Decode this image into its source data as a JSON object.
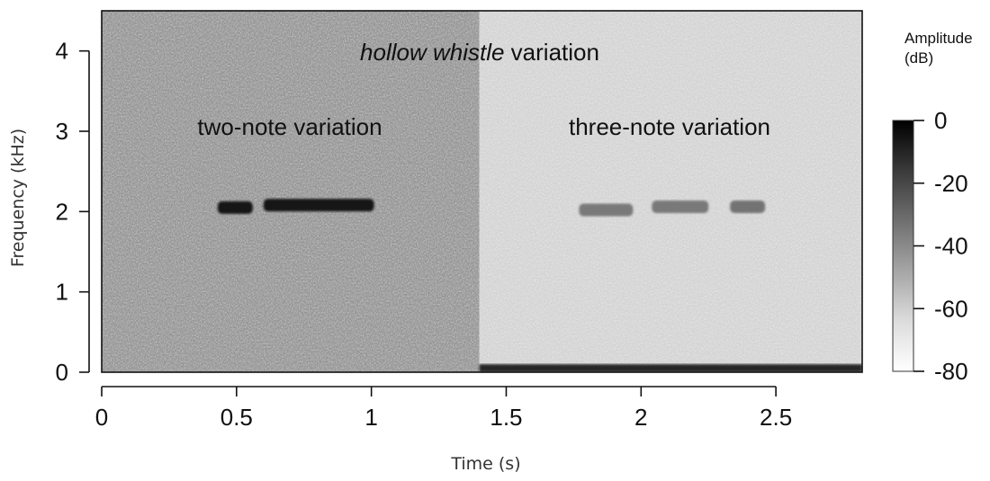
{
  "chart_data": {
    "type": "heatmap",
    "subtype": "spectrogram",
    "title": "",
    "title_parts": {
      "italic": "hollow whistle",
      "normal": " variation"
    },
    "xlabel": "Time (s)",
    "ylabel": "Frequency (kHz)",
    "xlim": [
      0,
      2.82
    ],
    "ylim": [
      0,
      4.5
    ],
    "xticks": [
      0,
      0.5,
      1,
      1.5,
      2,
      2.5
    ],
    "xtick_labels": [
      "0",
      "0.5",
      "1",
      "1.5",
      "2",
      "2.5"
    ],
    "yticks": [
      0,
      1,
      2,
      3,
      4
    ],
    "ytick_labels": [
      "0",
      "1",
      "2",
      "3",
      "4"
    ],
    "grid": false,
    "colormap": "grayscale",
    "colorbar": {
      "title_lines": [
        "Amplitude",
        "(dB)"
      ],
      "range": [
        -80,
        0
      ],
      "ticks": [
        0,
        -20,
        -40,
        -60,
        -80
      ],
      "tick_labels": [
        "0",
        "-20",
        "-40",
        "-60",
        "-80"
      ],
      "low_color": "#ffffff",
      "high_color": "#000000"
    },
    "panels": [
      {
        "label": "two-note variation",
        "x_range": [
          0,
          1.4
        ],
        "background_db": -46
      },
      {
        "label": "three-note variation",
        "x_range": [
          1.4,
          2.82
        ],
        "background_db": -66
      }
    ],
    "notes": [
      {
        "t_start": 0.43,
        "t_end": 0.56,
        "freq_khz": 2.05,
        "db": -8
      },
      {
        "t_start": 0.6,
        "t_end": 1.01,
        "freq_khz": 2.08,
        "db": -8
      },
      {
        "t_start": 1.77,
        "t_end": 1.97,
        "freq_khz": 2.02,
        "db": -38
      },
      {
        "t_start": 2.04,
        "t_end": 2.25,
        "freq_khz": 2.06,
        "db": -38
      },
      {
        "t_start": 2.33,
        "t_end": 2.46,
        "freq_khz": 2.06,
        "db": -36
      }
    ],
    "low_band": {
      "freq_khz_max": 0.1,
      "db": -12
    }
  }
}
